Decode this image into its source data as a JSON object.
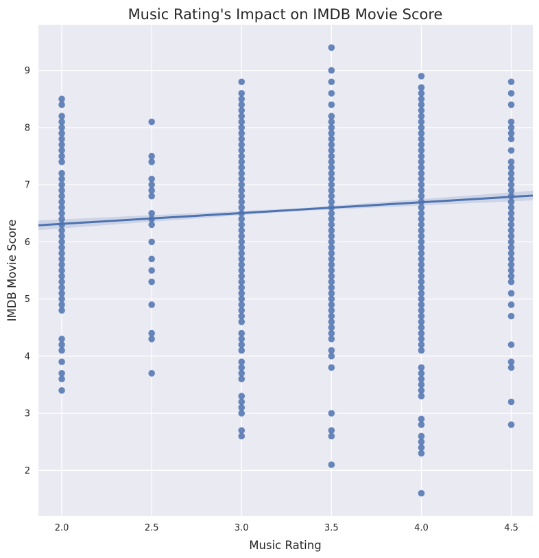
{
  "chart_data": {
    "type": "scatter",
    "title": "Music Rating's Impact on IMDB Movie Score",
    "xlabel": "Music Rating",
    "ylabel": "IMDB Movie Score",
    "xlim": [
      1.87,
      4.62
    ],
    "ylim": [
      1.2,
      9.8
    ],
    "x_ticks": [
      "2.0",
      "2.5",
      "3.0",
      "3.5",
      "4.0",
      "4.5"
    ],
    "y_ticks": [
      "2",
      "3",
      "4",
      "5",
      "6",
      "7",
      "8",
      "9"
    ],
    "grid": true,
    "point_color": "#4c72b0",
    "line_color": "#4c72b0",
    "background": "#eaeaf2",
    "regression_line": {
      "x": [
        1.87,
        4.62
      ],
      "y": [
        6.29,
        6.81
      ]
    },
    "series": [
      {
        "x": 2.0,
        "y": [
          3.4,
          3.6,
          3.7,
          3.9,
          4.1,
          4.2,
          4.3,
          4.8,
          4.9,
          5.0,
          5.1,
          5.2,
          5.3,
          5.4,
          5.5,
          5.6,
          5.7,
          5.8,
          5.9,
          6.0,
          6.1,
          6.2,
          6.3,
          6.4,
          6.5,
          6.6,
          6.7,
          6.8,
          6.9,
          7.0,
          7.1,
          7.2,
          7.4,
          7.5,
          7.6,
          7.7,
          7.8,
          7.9,
          8.0,
          8.1,
          8.2,
          8.4,
          8.5
        ]
      },
      {
        "x": 2.5,
        "y": [
          3.7,
          4.3,
          4.4,
          4.9,
          5.3,
          5.5,
          5.7,
          6.0,
          6.3,
          6.4,
          6.5,
          6.8,
          6.9,
          7.0,
          7.1,
          7.4,
          7.5,
          8.1
        ]
      },
      {
        "x": 3.0,
        "y": [
          2.6,
          2.7,
          3.0,
          3.1,
          3.2,
          3.3,
          3.6,
          3.7,
          3.8,
          3.9,
          4.1,
          4.2,
          4.3,
          4.4,
          4.6,
          4.7,
          4.8,
          4.9,
          5.0,
          5.1,
          5.2,
          5.3,
          5.4,
          5.5,
          5.6,
          5.7,
          5.8,
          5.9,
          6.0,
          6.1,
          6.2,
          6.3,
          6.4,
          6.5,
          6.6,
          6.7,
          6.8,
          6.9,
          7.0,
          7.1,
          7.2,
          7.3,
          7.4,
          7.5,
          7.6,
          7.7,
          7.8,
          7.9,
          8.0,
          8.1,
          8.2,
          8.3,
          8.4,
          8.5,
          8.6,
          8.8
        ]
      },
      {
        "x": 3.5,
        "y": [
          2.1,
          2.6,
          2.7,
          3.0,
          3.8,
          4.0,
          4.1,
          4.3,
          4.4,
          4.5,
          4.6,
          4.7,
          4.8,
          4.9,
          5.0,
          5.1,
          5.2,
          5.3,
          5.4,
          5.5,
          5.6,
          5.7,
          5.8,
          5.9,
          6.0,
          6.1,
          6.2,
          6.3,
          6.4,
          6.5,
          6.6,
          6.7,
          6.8,
          6.9,
          7.0,
          7.1,
          7.2,
          7.3,
          7.4,
          7.5,
          7.6,
          7.7,
          7.8,
          7.9,
          8.0,
          8.1,
          8.2,
          8.4,
          8.6,
          8.8,
          9.0,
          9.4
        ]
      },
      {
        "x": 4.0,
        "y": [
          1.6,
          2.3,
          2.4,
          2.5,
          2.6,
          2.8,
          2.9,
          3.3,
          3.4,
          3.5,
          3.6,
          3.7,
          3.8,
          4.1,
          4.2,
          4.3,
          4.4,
          4.5,
          4.6,
          4.7,
          4.8,
          4.9,
          5.0,
          5.1,
          5.2,
          5.3,
          5.4,
          5.5,
          5.6,
          5.7,
          5.8,
          5.9,
          6.0,
          6.1,
          6.2,
          6.3,
          6.4,
          6.5,
          6.6,
          6.7,
          6.8,
          6.9,
          7.0,
          7.1,
          7.2,
          7.3,
          7.4,
          7.5,
          7.6,
          7.7,
          7.8,
          7.9,
          8.0,
          8.1,
          8.2,
          8.3,
          8.4,
          8.5,
          8.6,
          8.7,
          8.9
        ]
      },
      {
        "x": 4.5,
        "y": [
          2.8,
          3.2,
          3.8,
          3.9,
          4.2,
          4.7,
          4.9,
          5.1,
          5.3,
          5.4,
          5.5,
          5.6,
          5.7,
          5.8,
          5.9,
          6.0,
          6.1,
          6.2,
          6.3,
          6.4,
          6.5,
          6.6,
          6.7,
          6.8,
          6.9,
          7.0,
          7.1,
          7.2,
          7.3,
          7.4,
          7.6,
          7.8,
          7.9,
          8.0,
          8.1,
          8.4,
          8.6,
          8.8
        ]
      }
    ]
  }
}
